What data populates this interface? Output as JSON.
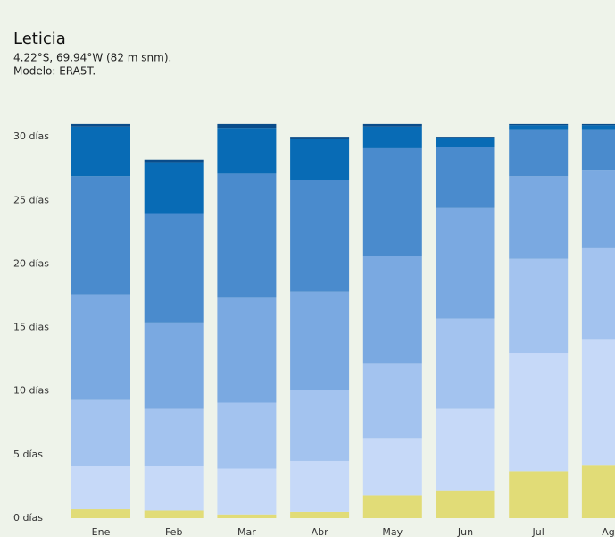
{
  "chart_data": {
    "type": "stacked_bar",
    "title": "Leticia",
    "subtitle": [
      "4.22°S, 69.94°W (82 m snm).",
      "Modelo: ERA5T."
    ],
    "categories": [
      "Ene",
      "Feb",
      "Mar",
      "Abr",
      "May",
      "Jun",
      "Jul",
      "Ago"
    ],
    "series": [
      {
        "color": "#e1dc77",
        "values": [
          0.7,
          0.6,
          0.3,
          0.5,
          1.8,
          2.2,
          3.7,
          4.2
        ]
      },
      {
        "color": "#c6d9f8",
        "values": [
          3.4,
          3.5,
          3.6,
          4.0,
          4.5,
          6.4,
          9.3,
          9.9
        ]
      },
      {
        "color": "#a3c3ef",
        "values": [
          5.2,
          4.5,
          5.2,
          5.6,
          5.9,
          7.1,
          7.4,
          7.2
        ]
      },
      {
        "color": "#7aa9e1",
        "values": [
          8.3,
          6.8,
          8.3,
          7.7,
          8.4,
          8.7,
          6.5,
          6.1
        ]
      },
      {
        "color": "#4a8bcd",
        "values": [
          9.3,
          8.6,
          9.7,
          8.8,
          8.5,
          4.8,
          3.7,
          3.2
        ]
      },
      {
        "color": "#086bb5",
        "values": [
          3.9,
          4.0,
          3.6,
          3.2,
          1.7,
          0.7,
          0.3,
          0.3
        ]
      },
      {
        "color": "#0a4c8a",
        "values": [
          0.2,
          0.2,
          0.3,
          0.2,
          0.2,
          0.1,
          0.1,
          0.1
        ]
      }
    ],
    "ylim": [
      0,
      31
    ],
    "yticks": [
      {
        "value": 0,
        "label": "0 días"
      },
      {
        "value": 5,
        "label": "5 días"
      },
      {
        "value": 10,
        "label": "10 días"
      },
      {
        "value": 15,
        "label": "15 días"
      },
      {
        "value": 20,
        "label": "20 días"
      },
      {
        "value": 25,
        "label": "25 días"
      },
      {
        "value": 30,
        "label": "30 días"
      }
    ],
    "grid": false
  }
}
